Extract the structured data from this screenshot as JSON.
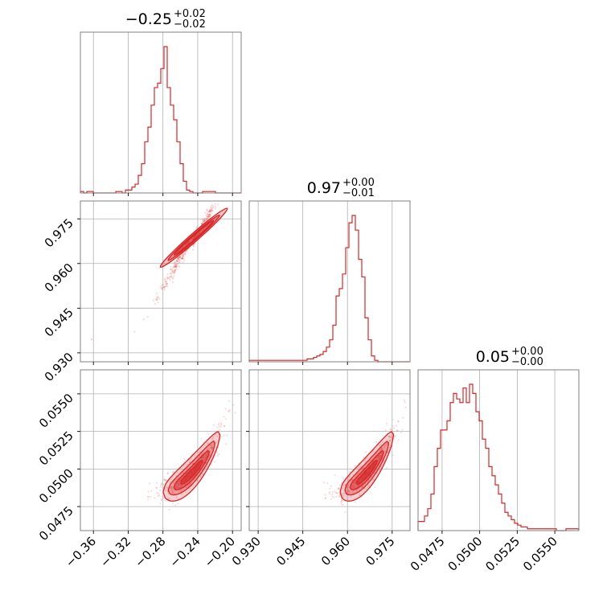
{
  "colors": {
    "accent": "#d62728",
    "grid": "#b0b0b0",
    "frame": "#808080"
  },
  "titles": [
    {
      "value": "−0.25",
      "plus": "+0.02",
      "minus": "−0.02"
    },
    {
      "value": "0.97",
      "plus": "+0.00",
      "minus": "−0.01"
    },
    {
      "value": "0.05",
      "plus": "+0.00",
      "minus": "−0.00"
    }
  ],
  "chart_data": {
    "type": "corner",
    "grid": true,
    "parameters": [
      {
        "range": [
          -0.375,
          -0.19
        ],
        "ticks": [
          -0.36,
          -0.32,
          -0.28,
          -0.24,
          -0.2
        ],
        "tick_labels": [
          "−0.36",
          "−0.32",
          "−0.28",
          "−0.24",
          "−0.20"
        ]
      },
      {
        "range": [
          0.927,
          0.981
        ],
        "ticks": [
          0.93,
          0.945,
          0.96,
          0.975
        ],
        "tick_labels": [
          "0.930",
          "0.945",
          "0.960",
          "0.975"
        ]
      },
      {
        "range": [
          0.0459,
          0.0566
        ],
        "ticks": [
          0.0475,
          0.05,
          0.0525,
          0.055
        ],
        "tick_labels": [
          "0.0475",
          "0.0500",
          "0.0525",
          "0.0550"
        ]
      }
    ],
    "histograms": [
      {
        "param": 0,
        "edges_start": -0.375,
        "bin_width": 0.0037,
        "counts": [
          1,
          0,
          1,
          1,
          0,
          0,
          0,
          0,
          0,
          0,
          0,
          1,
          1,
          0,
          2,
          2,
          4,
          6,
          12,
          20,
          35,
          45,
          60,
          72,
          75,
          85,
          100,
          72,
          60,
          50,
          35,
          20,
          8,
          2,
          1,
          0,
          0,
          0,
          1,
          1,
          1,
          1,
          0,
          0,
          0,
          0,
          0,
          0,
          0,
          0
        ]
      },
      {
        "param": 1,
        "edges_start": 0.927,
        "bin_width": 0.00108,
        "counts": [
          1,
          1,
          1,
          1,
          1,
          1,
          1,
          1,
          1,
          1,
          1,
          1,
          1,
          1,
          1,
          1,
          1,
          1,
          2,
          2,
          3,
          4,
          5,
          7,
          10,
          15,
          25,
          45,
          50,
          60,
          78,
          95,
          100,
          90,
          70,
          58,
          30,
          15,
          4,
          1,
          0,
          0,
          0,
          0,
          0,
          0,
          0,
          0,
          0,
          0
        ]
      },
      {
        "param": 2,
        "edges_start": 0.0459,
        "bin_width": 0.000214,
        "counts": [
          5,
          5,
          8,
          12,
          20,
          35,
          45,
          55,
          55,
          60,
          70,
          75,
          72,
          70,
          78,
          70,
          80,
          75,
          65,
          60,
          50,
          45,
          35,
          30,
          25,
          20,
          15,
          10,
          8,
          6,
          4,
          3,
          2,
          2,
          1,
          1,
          1,
          1,
          1,
          1,
          1,
          1,
          1,
          0,
          0,
          0,
          1,
          1,
          1,
          1
        ]
      }
    ],
    "scatter_pairs": [
      {
        "x_param": 0,
        "y_param": 1,
        "shape": "narrow-ellipse",
        "center": [
          -0.25,
          0.967
        ],
        "slope": 0.5
      },
      {
        "x_param": 0,
        "y_param": 2,
        "shape": "banana",
        "center": [
          -0.25,
          0.0498
        ]
      },
      {
        "x_param": 1,
        "y_param": 2,
        "shape": "banana",
        "center": [
          0.967,
          0.0498
        ]
      }
    ]
  }
}
